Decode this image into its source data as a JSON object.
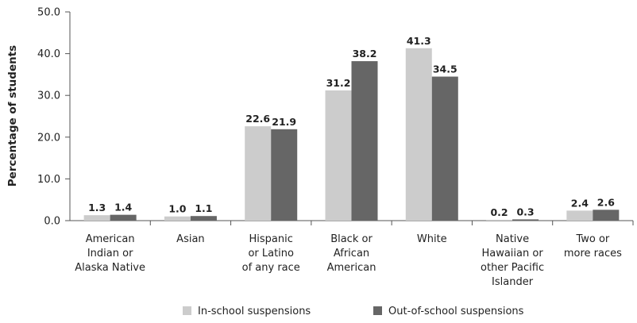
{
  "chart_data": {
    "type": "bar",
    "ylabel": "Percentage of students",
    "ylim": [
      0,
      50
    ],
    "yticks": [
      "0.0",
      "10.0",
      "20.0",
      "30.0",
      "40.0",
      "50.0"
    ],
    "categories": [
      [
        "American",
        "Indian or",
        "Alaska Native"
      ],
      [
        "Asian"
      ],
      [
        "Hispanic",
        "or Latino",
        "of any race"
      ],
      [
        "Black or",
        "African",
        "American"
      ],
      [
        "White"
      ],
      [
        "Native",
        "Hawaiian or",
        "other Pacific",
        "Islander"
      ],
      [
        "Two or",
        "more races"
      ]
    ],
    "series": [
      {
        "name": "In-school suspensions",
        "color": "#cccccc",
        "values": [
          1.3,
          1.0,
          22.6,
          31.2,
          41.3,
          0.2,
          2.4
        ],
        "labels": [
          "1.3",
          "1.0",
          "22.6",
          "31.2",
          "41.3",
          "0.2",
          "2.4"
        ]
      },
      {
        "name": "Out-of-school suspensions",
        "color": "#666666",
        "values": [
          1.4,
          1.1,
          21.9,
          38.2,
          34.5,
          0.3,
          2.6
        ],
        "labels": [
          "1.4",
          "1.1",
          "21.9",
          "38.2",
          "34.5",
          "0.3",
          "2.6"
        ]
      }
    ],
    "legend_position": "bottom"
  }
}
